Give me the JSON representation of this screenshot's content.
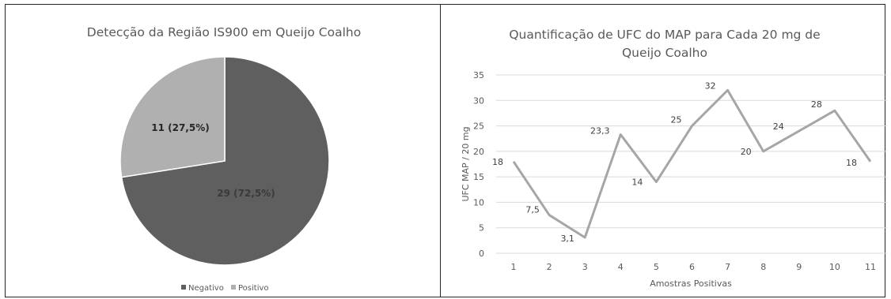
{
  "chart_data": [
    {
      "type": "pie",
      "title": "Detecção da Região IS900 em Queijo Coalho",
      "slices": [
        {
          "name": "Negativo",
          "value": 29,
          "label": "29 (72,5%)",
          "color": "#5f5f5f",
          "label_color": "#3a3a3a"
        },
        {
          "name": "Positivo",
          "value": 11,
          "label": "11 (27,5%)",
          "color": "#b0b0b0",
          "label_color": "#262626"
        }
      ],
      "legend": {
        "position": "bottom",
        "entries": [
          "Negativo",
          "Positivo"
        ]
      }
    },
    {
      "type": "line",
      "title_lines": [
        "Quantificação de UFC do MAP para Cada 20 mg de",
        "Queijo Coalho"
      ],
      "xlabel": "Amostras Positivas",
      "ylabel": "UFC MAP / 20 mg",
      "ylim": [
        0,
        35
      ],
      "yticks": [
        "0",
        "5",
        "10",
        "15",
        "20",
        "25",
        "30",
        "35"
      ],
      "categories": [
        "1",
        "2",
        "3",
        "4",
        "5",
        "6",
        "7",
        "8",
        "9",
        "10",
        "11"
      ],
      "values": [
        18,
        7.5,
        3.1,
        23.3,
        14,
        25,
        32,
        20,
        24,
        28,
        18
      ],
      "data_labels": [
        "18",
        "7,5",
        "3,1",
        "23,3",
        "14",
        "25",
        "32",
        "20",
        "24",
        "28",
        "18"
      ],
      "grid": true,
      "line_color": "#a6a6a6"
    }
  ]
}
